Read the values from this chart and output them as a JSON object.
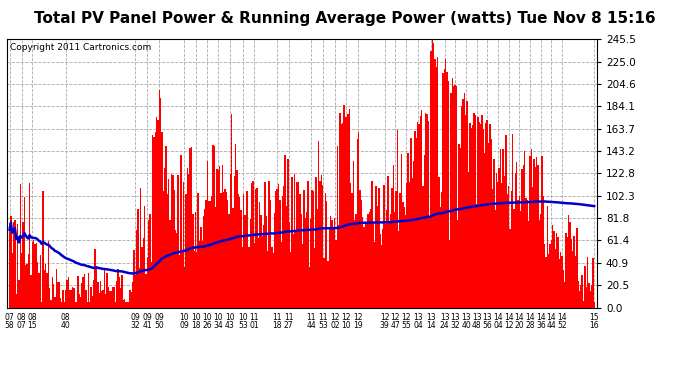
{
  "title": "Total PV Panel Power & Running Average Power (watts) Tue Nov 8 15:16",
  "copyright": "Copyright 2011 Cartronics.com",
  "yticks": [
    0.0,
    20.5,
    40.9,
    61.4,
    81.8,
    102.3,
    122.8,
    143.2,
    163.7,
    184.1,
    204.6,
    225.0,
    245.5
  ],
  "ymax": 245.5,
  "ymin": 0.0,
  "xtick_labels": [
    "07:58",
    "08:07",
    "08:15",
    "08:40",
    "09:32",
    "09:41",
    "09:50",
    "10:09",
    "10:18",
    "10:26",
    "10:34",
    "10:43",
    "10:53",
    "11:01",
    "11:18",
    "11:27",
    "11:44",
    "11:53",
    "12:02",
    "12:10",
    "12:19",
    "12:39",
    "12:47",
    "12:55",
    "13:04",
    "13:14",
    "13:24",
    "13:32",
    "13:40",
    "13:48",
    "13:56",
    "14:04",
    "14:12",
    "14:20",
    "14:28",
    "14:36",
    "14:44",
    "14:52",
    "15:16"
  ],
  "bar_color": "#ff0000",
  "line_color": "#0000cc",
  "background_color": "#ffffff",
  "grid_color": "#aaaaaa",
  "title_fontsize": 11,
  "copyright_fontsize": 6.5
}
